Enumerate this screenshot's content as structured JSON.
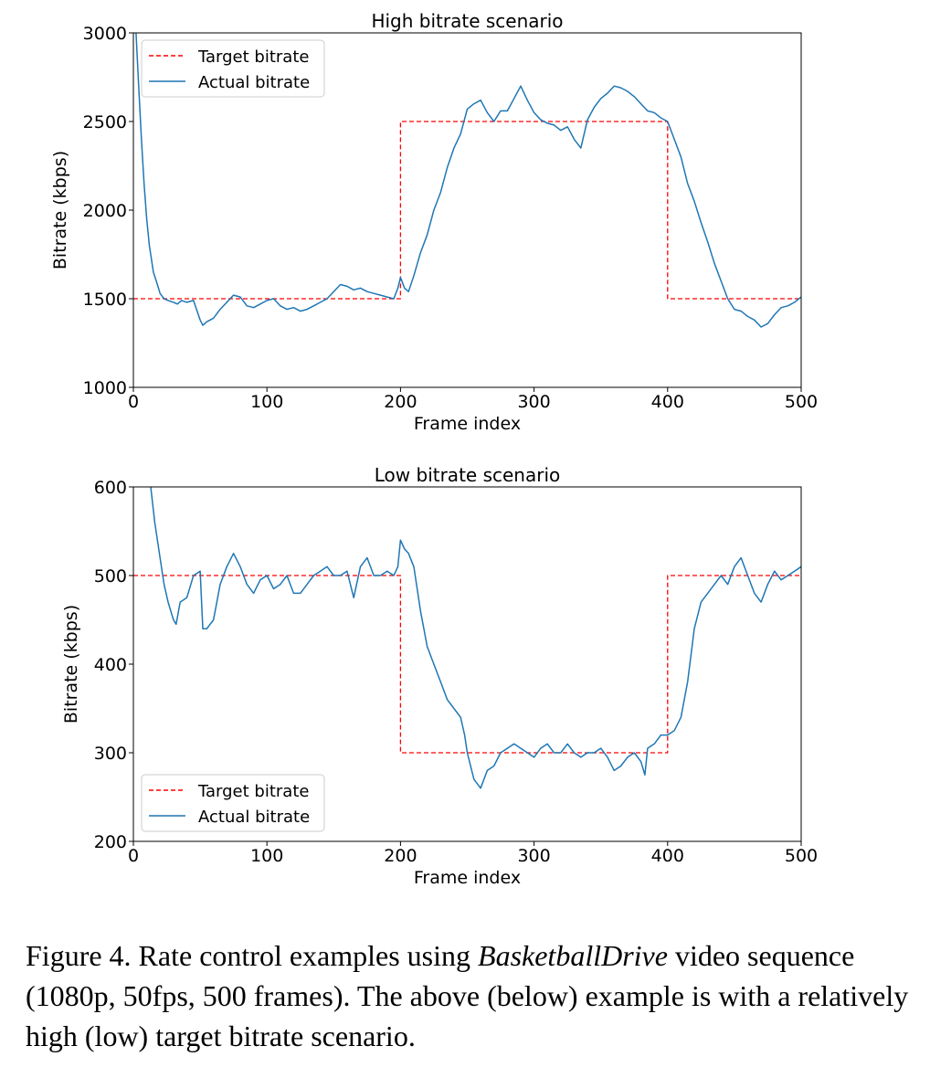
{
  "chart_data": [
    {
      "type": "line",
      "title": "High bitrate scenario",
      "xlabel": "Frame index",
      "ylabel": "Bitrate (kbps)",
      "xlim": [
        0,
        500
      ],
      "ylim": [
        1000,
        3000
      ],
      "xticks": [
        "0",
        "100",
        "200",
        "300",
        "400",
        "500"
      ],
      "yticks": [
        "1000",
        "1500",
        "2000",
        "2500",
        "3000"
      ],
      "xtick_values": [
        0,
        100,
        200,
        300,
        400,
        500
      ],
      "ytick_values": [
        1000,
        1500,
        2000,
        2500,
        3000
      ],
      "grid": false,
      "legend_position": "top-left",
      "series": [
        {
          "name": "Target bitrate",
          "color": "#ff0000",
          "style": "dashed",
          "x": [
            0,
            200,
            200,
            400,
            400,
            500
          ],
          "y": [
            1500,
            1500,
            2500,
            2500,
            1500,
            1500
          ]
        },
        {
          "name": "Actual bitrate",
          "color": "#1f77b4",
          "style": "solid",
          "x": [
            2,
            4,
            6,
            8,
            10,
            12,
            15,
            18,
            20,
            23,
            26,
            30,
            33,
            36,
            40,
            45,
            50,
            52,
            55,
            60,
            65,
            70,
            75,
            80,
            85,
            90,
            95,
            100,
            105,
            110,
            115,
            120,
            125,
            130,
            135,
            140,
            145,
            150,
            155,
            160,
            165,
            170,
            175,
            180,
            185,
            190,
            195,
            198,
            200,
            203,
            206,
            210,
            215,
            220,
            225,
            230,
            235,
            240,
            245,
            250,
            255,
            260,
            265,
            270,
            275,
            280,
            285,
            290,
            295,
            300,
            305,
            310,
            315,
            320,
            325,
            330,
            335,
            340,
            345,
            350,
            355,
            360,
            365,
            370,
            375,
            380,
            385,
            390,
            395,
            400,
            405,
            410,
            415,
            420,
            425,
            430,
            435,
            440,
            445,
            450,
            455,
            460,
            465,
            470,
            475,
            480,
            485,
            490,
            495,
            500
          ],
          "y": [
            3000,
            2700,
            2400,
            2150,
            1950,
            1800,
            1650,
            1580,
            1530,
            1500,
            1490,
            1480,
            1470,
            1490,
            1480,
            1490,
            1380,
            1350,
            1370,
            1390,
            1440,
            1480,
            1520,
            1510,
            1460,
            1450,
            1470,
            1490,
            1500,
            1460,
            1440,
            1450,
            1430,
            1440,
            1460,
            1480,
            1500,
            1540,
            1580,
            1570,
            1550,
            1560,
            1540,
            1530,
            1520,
            1510,
            1500,
            1560,
            1620,
            1560,
            1540,
            1630,
            1760,
            1860,
            2000,
            2100,
            2240,
            2350,
            2430,
            2570,
            2600,
            2620,
            2550,
            2500,
            2560,
            2560,
            2630,
            2700,
            2620,
            2550,
            2510,
            2490,
            2480,
            2450,
            2470,
            2400,
            2350,
            2510,
            2580,
            2630,
            2660,
            2700,
            2690,
            2670,
            2640,
            2600,
            2560,
            2550,
            2520,
            2500,
            2400,
            2300,
            2150,
            2050,
            1930,
            1820,
            1700,
            1600,
            1500,
            1440,
            1430,
            1400,
            1380,
            1340,
            1360,
            1410,
            1450,
            1460,
            1480,
            1510
          ]
        }
      ]
    },
    {
      "type": "line",
      "title": "Low bitrate scenario",
      "xlabel": "Frame index",
      "ylabel": "Bitrate (kbps)",
      "xlim": [
        0,
        500
      ],
      "ylim": [
        200,
        600
      ],
      "xticks": [
        "0",
        "100",
        "200",
        "300",
        "400",
        "500"
      ],
      "yticks": [
        "200",
        "300",
        "400",
        "500",
        "600"
      ],
      "xtick_values": [
        0,
        100,
        200,
        300,
        400,
        500
      ],
      "ytick_values": [
        200,
        300,
        400,
        500,
        600
      ],
      "grid": false,
      "legend_position": "bottom-left",
      "series": [
        {
          "name": "Target bitrate",
          "color": "#ff0000",
          "style": "dashed",
          "x": [
            0,
            200,
            200,
            400,
            400,
            500
          ],
          "y": [
            500,
            500,
            300,
            300,
            500,
            500
          ]
        },
        {
          "name": "Actual bitrate",
          "color": "#1f77b4",
          "style": "solid",
          "x": [
            13,
            16,
            20,
            23,
            26,
            28,
            30,
            32,
            35,
            40,
            45,
            50,
            52,
            55,
            60,
            65,
            70,
            75,
            80,
            85,
            90,
            95,
            100,
            105,
            110,
            115,
            120,
            125,
            130,
            135,
            140,
            145,
            150,
            155,
            160,
            165,
            170,
            175,
            180,
            185,
            190,
            195,
            198,
            200,
            203,
            206,
            210,
            215,
            220,
            225,
            230,
            235,
            240,
            245,
            248,
            250,
            255,
            260,
            265,
            270,
            275,
            280,
            285,
            290,
            295,
            300,
            305,
            310,
            315,
            320,
            325,
            330,
            335,
            340,
            345,
            350,
            355,
            360,
            365,
            370,
            375,
            380,
            383,
            385,
            390,
            395,
            400,
            405,
            410,
            415,
            420,
            425,
            430,
            435,
            440,
            445,
            450,
            455,
            460,
            465,
            470,
            475,
            480,
            485,
            490,
            495,
            500
          ],
          "y": [
            600,
            560,
            520,
            490,
            470,
            460,
            450,
            445,
            470,
            475,
            500,
            505,
            440,
            440,
            450,
            490,
            510,
            525,
            510,
            490,
            480,
            495,
            500,
            485,
            490,
            500,
            480,
            480,
            490,
            500,
            505,
            510,
            500,
            500,
            505,
            475,
            510,
            520,
            500,
            500,
            505,
            500,
            510,
            540,
            530,
            525,
            510,
            460,
            420,
            400,
            380,
            360,
            350,
            340,
            320,
            300,
            270,
            260,
            280,
            285,
            300,
            305,
            310,
            305,
            300,
            295,
            305,
            310,
            300,
            300,
            310,
            300,
            295,
            300,
            300,
            305,
            295,
            280,
            285,
            295,
            300,
            290,
            275,
            305,
            310,
            320,
            320,
            325,
            340,
            380,
            440,
            470,
            480,
            490,
            500,
            490,
            510,
            520,
            500,
            480,
            470,
            490,
            505,
            495,
            500,
            505,
            510
          ]
        }
      ]
    }
  ],
  "caption": {
    "prefix": "Figure 4.  Rate control examples using ",
    "emphasis": "BasketballDrive",
    "suffix": " video sequence (1080p, 50fps, 500 frames). The above (below) example is with a relatively high (low) target bitrate scenario."
  }
}
